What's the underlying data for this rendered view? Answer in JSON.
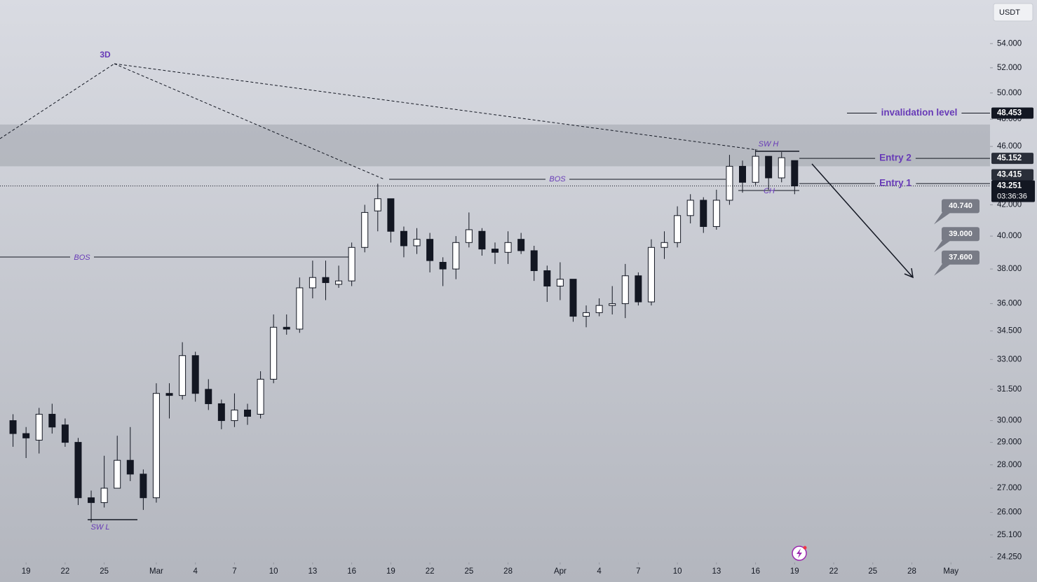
{
  "chart_data": {
    "type": "candlestick",
    "log_scale": true,
    "grid": false,
    "currency": "USDT",
    "x": [
      "02-18",
      "02-19",
      "02-20",
      "02-21",
      "02-22",
      "02-23",
      "02-24",
      "02-25",
      "02-26",
      "02-27",
      "02-28",
      "03-01",
      "03-02",
      "03-03",
      "03-04",
      "03-05",
      "03-06",
      "03-07",
      "03-08",
      "03-09",
      "03-10",
      "03-11",
      "03-12",
      "03-13",
      "03-14",
      "03-15",
      "03-16",
      "03-17",
      "03-18",
      "03-19",
      "03-20",
      "03-21",
      "03-22",
      "03-23",
      "03-24",
      "03-25",
      "03-26",
      "03-27",
      "03-28",
      "03-29",
      "03-30",
      "03-31",
      "04-01",
      "04-02",
      "04-03",
      "04-04",
      "04-05",
      "04-06",
      "04-07",
      "04-08",
      "04-09",
      "04-10",
      "04-11",
      "04-12",
      "04-13",
      "04-14",
      "04-15",
      "04-16",
      "04-17",
      "04-18",
      "04-19"
    ],
    "open": [
      30.0,
      29.4,
      29.1,
      30.3,
      29.8,
      29.0,
      26.6,
      26.4,
      27.0,
      28.2,
      27.6,
      26.6,
      31.3,
      31.2,
      33.2,
      31.5,
      30.8,
      30.0,
      30.5,
      30.3,
      32.0,
      34.7,
      34.6,
      36.9,
      37.5,
      37.1,
      37.3,
      39.3,
      41.6,
      42.4,
      40.3,
      39.4,
      39.8,
      38.4,
      38.0,
      39.6,
      40.3,
      39.2,
      39.0,
      39.8,
      39.1,
      37.9,
      37.0,
      37.4,
      35.3,
      35.5,
      35.9,
      36.0,
      37.6,
      36.1,
      39.3,
      39.6,
      41.3,
      42.3,
      40.6,
      42.3,
      44.6,
      43.5,
      45.3,
      43.8,
      45.0
    ],
    "high": [
      30.3,
      29.7,
      30.6,
      30.8,
      30.1,
      29.2,
      26.9,
      28.4,
      29.3,
      29.7,
      27.8,
      31.8,
      31.8,
      33.9,
      33.4,
      32.0,
      31.0,
      31.3,
      30.8,
      32.4,
      35.4,
      35.4,
      37.5,
      38.5,
      38.5,
      38.2,
      39.6,
      42.0,
      43.4,
      42.4,
      40.6,
      40.5,
      40.2,
      38.7,
      40.0,
      41.5,
      40.5,
      39.6,
      40.3,
      40.2,
      39.4,
      38.2,
      38.4,
      37.4,
      35.9,
      36.3,
      37.0,
      38.3,
      37.8,
      39.8,
      40.3,
      41.9,
      42.7,
      42.5,
      43.0,
      45.4,
      45.0,
      45.8,
      45.3,
      45.6,
      45.0
    ],
    "low": [
      28.8,
      28.3,
      28.5,
      29.4,
      28.8,
      26.3,
      25.6,
      26.2,
      27.0,
      27.3,
      26.1,
      26.4,
      30.1,
      31.0,
      30.9,
      30.5,
      29.6,
      29.7,
      29.8,
      30.1,
      31.8,
      34.3,
      34.4,
      36.3,
      36.2,
      36.9,
      37.0,
      39.0,
      40.3,
      39.6,
      38.7,
      38.9,
      37.8,
      37.0,
      37.4,
      39.3,
      38.8,
      38.3,
      38.3,
      38.9,
      37.3,
      36.1,
      36.2,
      35.0,
      34.7,
      35.3,
      35.4,
      35.2,
      35.9,
      35.9,
      38.6,
      39.3,
      40.8,
      40.2,
      40.4,
      42.0,
      42.8,
      43.3,
      43.0,
      43.5,
      42.7
    ],
    "close": [
      29.4,
      29.2,
      30.3,
      29.7,
      29.0,
      26.6,
      26.4,
      27.0,
      28.2,
      27.6,
      26.6,
      31.3,
      31.2,
      33.2,
      31.3,
      30.8,
      30.0,
      30.5,
      30.2,
      32.0,
      34.7,
      34.6,
      36.9,
      37.5,
      37.2,
      37.3,
      39.3,
      41.5,
      42.4,
      40.3,
      39.4,
      39.8,
      38.5,
      38.0,
      39.6,
      40.4,
      39.2,
      39.0,
      39.6,
      39.1,
      37.9,
      37.0,
      37.4,
      35.3,
      35.5,
      35.9,
      36.0,
      37.6,
      36.1,
      39.3,
      39.6,
      41.3,
      42.3,
      40.6,
      42.3,
      44.6,
      43.5,
      45.3,
      43.8,
      45.2,
      43.251
    ],
    "countdown": "03:36:36",
    "xlim": [
      "02-17",
      "05-04"
    ],
    "xticks": [
      "19",
      "22",
      "25",
      {
        "value": "03-01",
        "label": "Mar"
      },
      "4",
      "7",
      "10",
      "13",
      "16",
      "19",
      "22",
      "25",
      "28",
      {
        "value": "04-01",
        "label": "Apr"
      },
      "4",
      "7",
      "10",
      "13",
      "16",
      "19",
      "22",
      "25",
      "28",
      {
        "value": "05-01",
        "label": "May"
      }
    ],
    "ylim": [
      24.05,
      57.8
    ],
    "yticks": [
      {
        "value": 54,
        "label": "54.000"
      },
      {
        "value": 52,
        "label": "52.000"
      },
      {
        "value": 50,
        "label": "50.000"
      },
      {
        "value": 48,
        "label": "48.000"
      },
      {
        "value": 46,
        "label": "46.000"
      },
      {
        "value": 42,
        "label": "42.000"
      },
      {
        "value": 40,
        "label": "40.000"
      },
      {
        "value": 38,
        "label": "38.000"
      },
      {
        "value": 36,
        "label": "36.000"
      },
      {
        "value": 34.5,
        "label": "34.500"
      },
      {
        "value": 33,
        "label": "33.000"
      },
      {
        "value": 31.5,
        "label": "31.500"
      },
      {
        "value": 30,
        "label": "30.000"
      },
      {
        "value": 29,
        "label": "29.000"
      },
      {
        "value": 28,
        "label": "28.000"
      },
      {
        "value": 27,
        "label": "27.000"
      },
      {
        "value": 26,
        "label": "26.000"
      },
      {
        "value": 25.1,
        "label": "25.100"
      },
      {
        "value": 24.25,
        "label": "24.250"
      }
    ],
    "zone": [
      44.6,
      47.6
    ],
    "levels": [
      {
        "name": "invalidation level",
        "value": 48.453
      },
      {
        "name": "Entry 2",
        "value": 45.152
      },
      {
        "name": "Entry 1",
        "value": 43.415
      }
    ],
    "targets": [
      {
        "value": 40.74,
        "label": "40.740"
      },
      {
        "value": 39,
        "label": "39.000"
      },
      {
        "value": 37.6,
        "label": "37.600"
      }
    ],
    "annotations": {
      "pattern": "3D",
      "bos": [
        "BOS",
        "BOS"
      ],
      "swing_low": "SW L",
      "swing_high": "SW H",
      "change": "CH"
    }
  }
}
